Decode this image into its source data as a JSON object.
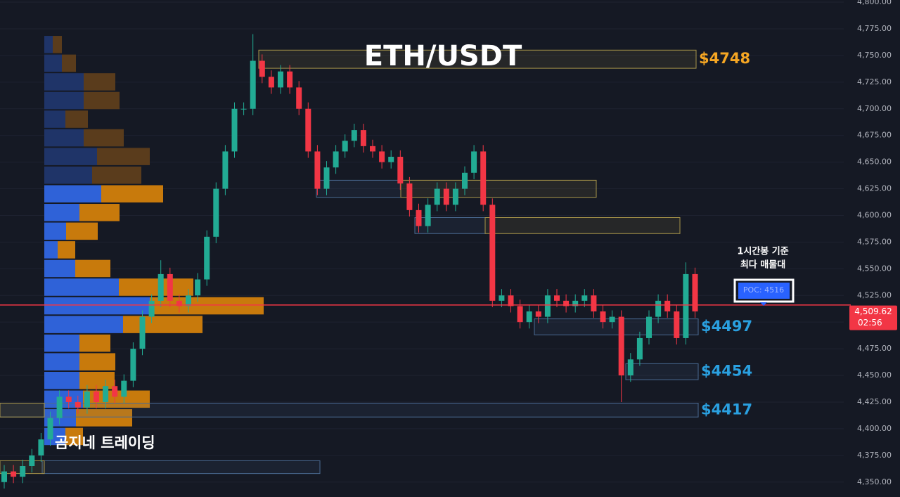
{
  "title": "ETH/USDT",
  "watermark": "곰지네 트레이딩",
  "annotation": [
    "1시간봉 기준",
    "최다 매물대"
  ],
  "chart_data": {
    "type": "candlestick",
    "open": [
      4350,
      4360,
      4355,
      4365,
      4375,
      4390,
      4410,
      4430,
      4425,
      4420,
      4435,
      4425,
      4440,
      4430,
      4445,
      4475,
      4505,
      4520,
      4545,
      4520,
      4515,
      4525,
      4540,
      4580,
      4625,
      4660,
      4700,
      4700,
      4745,
      4730,
      4720,
      4735,
      4720,
      4700,
      4660,
      4625,
      4645,
      4660,
      4670,
      4680,
      4665,
      4660,
      4650,
      4655,
      4630,
      4605,
      4590,
      4610,
      4625,
      4610,
      4625,
      4640,
      4660,
      4610,
      4520,
      4525,
      4515,
      4500,
      4510,
      4505,
      4525,
      4520,
      4515,
      4520,
      4525,
      4510,
      4500,
      4505,
      4450,
      4465,
      4485,
      4505,
      4520,
      4510,
      4485,
      4545
    ],
    "high": [
      4366,
      4366,
      4371,
      4381,
      4396,
      4416,
      4436,
      4436,
      4431,
      4441,
      4441,
      4446,
      4446,
      4451,
      4481,
      4511,
      4526,
      4558,
      4551,
      4526,
      4531,
      4546,
      4586,
      4631,
      4666,
      4706,
      4706,
      4770,
      4751,
      4736,
      4741,
      4741,
      4726,
      4706,
      4666,
      4651,
      4666,
      4676,
      4686,
      4686,
      4671,
      4666,
      4661,
      4661,
      4636,
      4611,
      4616,
      4631,
      4631,
      4631,
      4646,
      4666,
      4666,
      4616,
      4531,
      4531,
      4521,
      4516,
      4516,
      4531,
      4531,
      4526,
      4526,
      4531,
      4531,
      4516,
      4511,
      4511,
      4471,
      4491,
      4511,
      4526,
      4526,
      4516,
      4556,
      4551
    ],
    "low": [
      4344,
      4349,
      4349,
      4359,
      4369,
      4384,
      4404,
      4419,
      4414,
      4414,
      4419,
      4419,
      4424,
      4424,
      4439,
      4469,
      4499,
      4514,
      4514,
      4509,
      4509,
      4519,
      4534,
      4574,
      4619,
      4654,
      4694,
      4694,
      4724,
      4714,
      4714,
      4714,
      4694,
      4654,
      4619,
      4619,
      4639,
      4654,
      4664,
      4659,
      4654,
      4644,
      4644,
      4624,
      4599,
      4584,
      4584,
      4604,
      4604,
      4604,
      4619,
      4634,
      4604,
      4514,
      4514,
      4509,
      4494,
      4494,
      4499,
      4499,
      4514,
      4509,
      4509,
      4514,
      4504,
      4494,
      4494,
      4425,
      4444,
      4459,
      4479,
      4499,
      4504,
      4479,
      4479,
      4504
    ],
    "close": [
      4360,
      4355,
      4365,
      4375,
      4390,
      4410,
      4430,
      4425,
      4420,
      4435,
      4425,
      4440,
      4430,
      4445,
      4475,
      4505,
      4520,
      4545,
      4520,
      4515,
      4525,
      4540,
      4580,
      4625,
      4660,
      4700,
      4700,
      4745,
      4730,
      4720,
      4735,
      4720,
      4700,
      4660,
      4625,
      4645,
      4660,
      4670,
      4680,
      4665,
      4660,
      4650,
      4655,
      4630,
      4605,
      4590,
      4610,
      4625,
      4610,
      4625,
      4640,
      4660,
      4610,
      4520,
      4525,
      4515,
      4500,
      4510,
      4505,
      4525,
      4520,
      4515,
      4520,
      4525,
      4510,
      4500,
      4505,
      4450,
      4465,
      4485,
      4505,
      4520,
      4510,
      4485,
      4545,
      4510
    ],
    "up_color": "#22ab94",
    "down_color": "#f23645",
    "ylim": [
      4336,
      4802
    ],
    "yticks": [
      {
        "value": 4350,
        "label": "4,350.00"
      },
      {
        "value": 4375,
        "label": "4,375.00"
      },
      {
        "value": 4400,
        "label": "4,400.00"
      },
      {
        "value": 4425,
        "label": "4,425.00"
      },
      {
        "value": 4450,
        "label": "4,450.00"
      },
      {
        "value": 4475,
        "label": "4,475.00"
      },
      {
        "value": 4500,
        "label": "4,500.00"
      },
      {
        "value": 4525,
        "label": "4,525.00"
      },
      {
        "value": 4550,
        "label": "4,550.00"
      },
      {
        "value": 4575,
        "label": "4,575.00"
      },
      {
        "value": 4600,
        "label": "4,600.00"
      },
      {
        "value": 4625,
        "label": "4,625.00"
      },
      {
        "value": 4650,
        "label": "4,650.00"
      },
      {
        "value": 4675,
        "label": "4,675.00"
      },
      {
        "value": 4700,
        "label": "4,700.00"
      },
      {
        "value": 4725,
        "label": "4,725.00"
      },
      {
        "value": 4750,
        "label": "4,750.00"
      },
      {
        "value": 4775,
        "label": "4,775.00"
      },
      {
        "value": 4800,
        "label": "4,800.00"
      }
    ],
    "grid": true,
    "volume_profile": {
      "bins": [
        4769,
        4751.5,
        4734,
        4716.5,
        4699,
        4681.5,
        4664,
        4646.5,
        4629,
        4611.5,
        4594,
        4576.5,
        4559,
        4541.5,
        4524,
        4506.5,
        4489,
        4471.5,
        4454,
        4436.5,
        4419,
        4401.5,
        4384
      ],
      "buy": [
        12,
        25,
        56,
        56,
        30,
        56,
        75,
        68,
        81,
        50,
        31,
        19,
        44,
        106,
        150,
        112,
        50,
        50,
        50,
        55,
        45,
        30
      ],
      "sell": [
        13,
        20,
        45,
        51,
        32,
        57,
        75,
        70,
        88,
        57,
        45,
        25,
        50,
        106,
        162,
        113,
        44,
        51,
        50,
        95,
        80,
        25
      ],
      "buy_color": "#2f62d8",
      "sell_color": "#c87a0c",
      "dim_buy_color": "#1f3468",
      "dim_sell_color": "#5a3c1c",
      "value_area": [
        4384,
        4629
      ]
    },
    "supply_color": "#a8954a",
    "demand_color": "#4a6a92",
    "zones": [
      {
        "top": 4755,
        "bottom": 4738,
        "kind": "supply",
        "label": "$4748",
        "label_color": "#f5a623"
      },
      {
        "top": 4633,
        "bottom": 4617,
        "kind": "demand"
      },
      {
        "top": 4633,
        "bottom": 4617,
        "kind": "supply"
      },
      {
        "top": 4598,
        "bottom": 4583,
        "kind": "demand"
      },
      {
        "top": 4598,
        "bottom": 4583,
        "kind": "supply"
      },
      {
        "top": 4503,
        "bottom": 4488,
        "kind": "demand",
        "label": "$4497",
        "label_color": "#2aa0e0"
      },
      {
        "top": 4461,
        "bottom": 4446,
        "kind": "demand",
        "label": "$4454",
        "label_color": "#2aa0e0"
      },
      {
        "top": 4424,
        "bottom": 4411,
        "kind": "demand",
        "label": "$4417",
        "label_color": "#2aa0e0"
      },
      {
        "top": 4424,
        "bottom": 4411,
        "kind": "supply"
      },
      {
        "top": 4370,
        "bottom": 4358,
        "kind": "demand"
      },
      {
        "top": 4370,
        "bottom": 4358,
        "kind": "supply"
      }
    ],
    "poc": {
      "value": 4516,
      "label": "POC: 4516",
      "color": "#f23645"
    },
    "last_price": {
      "value": 4509.62,
      "label": "4,509.62",
      "countdown": "02:56"
    }
  }
}
